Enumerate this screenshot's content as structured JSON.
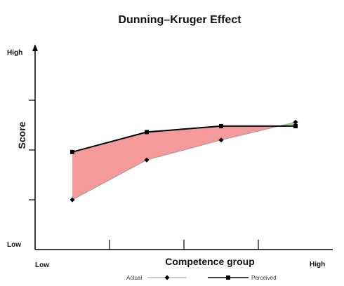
{
  "chart_data": {
    "type": "line",
    "title": "Dunning–Kruger Effect",
    "xlabel": "Competence group",
    "ylabel": "Score",
    "x_tick_labels": {
      "low": "Low",
      "high": "High"
    },
    "y_tick_labels": {
      "low": "Low",
      "high": "High"
    },
    "categories": [
      1,
      2,
      3,
      4
    ],
    "xlim": [
      0.5,
      4.5
    ],
    "ylim": [
      0,
      100
    ],
    "series": [
      {
        "name": "Actual",
        "values": [
          25,
          45,
          55,
          64
        ],
        "color": "#000000",
        "line_color": "#999999",
        "marker": "diamond"
      },
      {
        "name": "Perceived",
        "values": [
          49,
          59,
          62,
          62
        ],
        "color": "#000000",
        "line_color": "#000000",
        "marker": "square"
      }
    ],
    "fill_colors": {
      "overestimate": "#f49a9a",
      "underestimate": "#9ad58a"
    },
    "legend_position": "bottom",
    "grid": false
  }
}
